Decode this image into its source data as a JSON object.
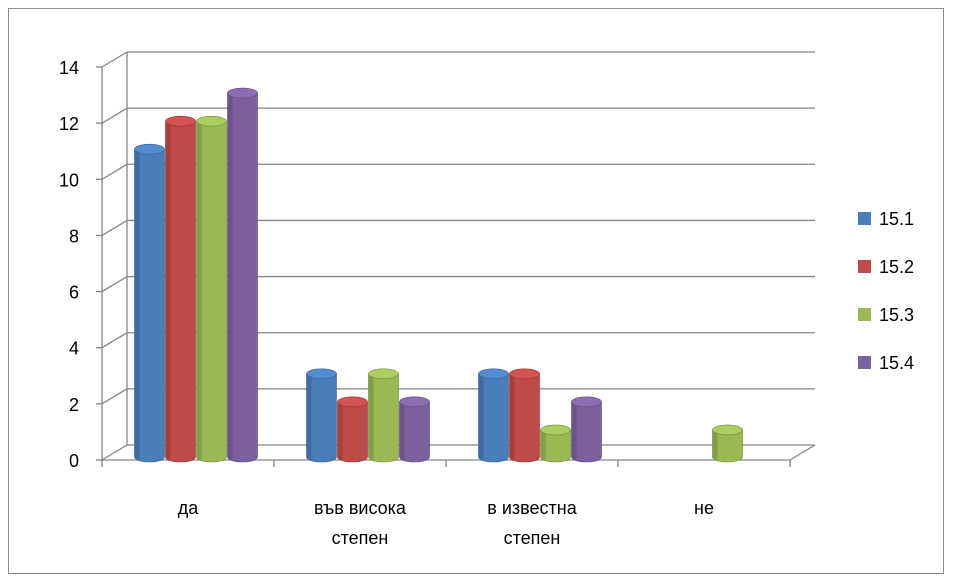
{
  "chart_data": {
    "type": "bar",
    "style": "3d-cylinder",
    "title": "",
    "xlabel": "",
    "ylabel": "",
    "ylim": [
      0,
      14
    ],
    "yticks": [
      0,
      2,
      4,
      6,
      8,
      10,
      12,
      14
    ],
    "grid": true,
    "legend_position": "right",
    "categories": [
      [
        "да"
      ],
      [
        "във висока",
        "степен"
      ],
      [
        "в известна",
        "степен"
      ],
      [
        "не"
      ]
    ],
    "series": [
      {
        "name": "15.1",
        "color": "#4a7ebb",
        "values": [
          11,
          3,
          3,
          0
        ]
      },
      {
        "name": "15.2",
        "color": "#be4b48",
        "values": [
          12,
          2,
          3,
          0
        ]
      },
      {
        "name": "15.3",
        "color": "#98b954",
        "values": [
          12,
          3,
          1,
          1
        ]
      },
      {
        "name": "15.4",
        "color": "#7d60a0",
        "values": [
          13,
          2,
          2,
          0
        ]
      }
    ]
  }
}
